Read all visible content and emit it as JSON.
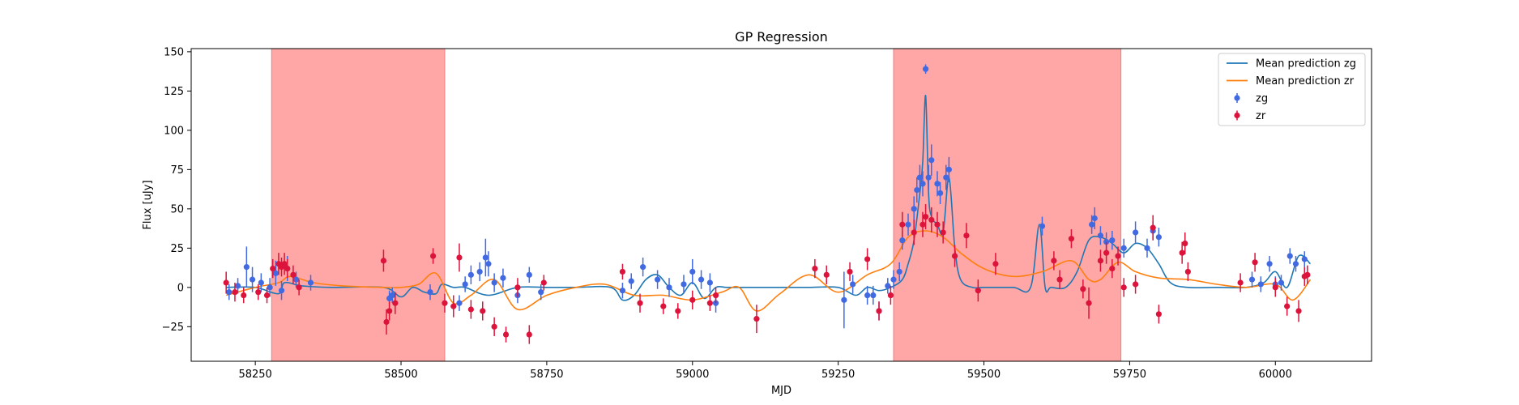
{
  "chart_data": {
    "type": "scatter",
    "title": "GP Regression",
    "xlabel": "MJD",
    "ylabel": "Flux [uJy]",
    "xlim": [
      58140,
      60165
    ],
    "ylim": [
      -47,
      152
    ],
    "xticks": [
      58250,
      58500,
      58750,
      59000,
      59250,
      59500,
      59750,
      60000
    ],
    "yticks": [
      -25,
      0,
      25,
      50,
      75,
      100,
      125,
      150
    ],
    "legend_position": "top-right",
    "grid": false,
    "shaded_regions": [
      {
        "x0": 58278,
        "x1": 58575,
        "color": "#ffa6a6"
      },
      {
        "x0": 59345,
        "x1": 59735,
        "color": "#ffa6a6"
      }
    ],
    "series": [
      {
        "name": "Mean prediction zg",
        "kind": "line",
        "color": "#1f77b4",
        "x": [
          58200,
          58250,
          58290,
          58300,
          58330,
          58380,
          58470,
          58500,
          58520,
          58540,
          58560,
          58570,
          58590,
          58610,
          58650,
          58700,
          58750,
          58800,
          58860,
          58880,
          58900,
          58920,
          58940,
          58960,
          58980,
          59000,
          59020,
          59040,
          59060,
          59100,
          59150,
          59200,
          59250,
          59280,
          59300,
          59320,
          59340,
          59360,
          59370,
          59380,
          59390,
          59395,
          59400,
          59405,
          59410,
          59420,
          59430,
          59440,
          59450,
          59460,
          59480,
          59500,
          59550,
          59580,
          59595,
          59605,
          59615,
          59640,
          59660,
          59680,
          59700,
          59720,
          59740,
          59760,
          59780,
          59800,
          59820,
          59850,
          59900,
          59950,
          59980,
          60000,
          60020,
          60040,
          60060
        ],
        "y": [
          0,
          0,
          -4,
          3,
          1,
          0,
          0,
          -6,
          0,
          -3,
          -4,
          2,
          0,
          0,
          -5,
          0,
          0,
          0,
          0,
          -8,
          -5,
          5,
          8,
          0,
          -5,
          3,
          -7,
          0,
          0,
          0,
          0,
          0,
          0,
          -5,
          0,
          -2,
          0,
          5,
          15,
          30,
          60,
          80,
          122,
          60,
          45,
          40,
          35,
          70,
          25,
          5,
          0,
          0,
          0,
          0,
          40,
          0,
          0,
          0,
          10,
          30,
          32,
          28,
          22,
          28,
          25,
          15,
          3,
          0,
          0,
          0,
          3,
          10,
          0,
          20,
          15
        ]
      },
      {
        "name": "Mean prediction zr",
        "kind": "line",
        "color": "#ff7f0e",
        "x": [
          58200,
          58250,
          58290,
          58310,
          58350,
          58400,
          58470,
          58500,
          58530,
          58560,
          58590,
          58620,
          58660,
          58700,
          58750,
          58800,
          58850,
          58900,
          58950,
          59000,
          59050,
          59080,
          59110,
          59150,
          59200,
          59250,
          59300,
          59340,
          59370,
          59400,
          59430,
          59460,
          59500,
          59550,
          59600,
          59650,
          59680,
          59700,
          59730,
          59760,
          59800,
          59850,
          59900,
          59950,
          60000,
          60030,
          60060
        ],
        "y": [
          -5,
          0,
          3,
          7,
          3,
          1,
          0,
          0,
          2,
          9,
          -10,
          -5,
          5,
          -14,
          -5,
          0,
          2,
          -5,
          -5,
          -8,
          -3,
          0,
          -15,
          -4,
          8,
          -3,
          8,
          15,
          32,
          36,
          32,
          22,
          12,
          7,
          10,
          17,
          5,
          5,
          16,
          10,
          6,
          5,
          2,
          0,
          2,
          -8,
          5
        ]
      },
      {
        "name": "zg",
        "kind": "errorbar",
        "color": "#4169e1",
        "x": [
          58205,
          58220,
          58235,
          58245,
          58260,
          58275,
          58285,
          58295,
          58305,
          58320,
          58345,
          58480,
          58485,
          58550,
          58600,
          58610,
          58620,
          58635,
          58645,
          58650,
          58660,
          58675,
          58700,
          58720,
          58740,
          58880,
          58895,
          58915,
          58940,
          58960,
          58985,
          59000,
          59015,
          59030,
          59040,
          59260,
          59275,
          59300,
          59310,
          59320,
          59335,
          59345,
          59355,
          59360,
          59370,
          59380,
          59385,
          59390,
          59395,
          59400,
          59405,
          59410,
          59420,
          59425,
          59435,
          59440,
          59600,
          59685,
          59690,
          59700,
          59710,
          59720,
          59740,
          59760,
          59780,
          59790,
          59800,
          59960,
          59975,
          59990,
          60000,
          60010,
          60025,
          60035,
          60050
        ],
        "y": [
          -3,
          1,
          13,
          5,
          3,
          0,
          9,
          -2,
          12,
          5,
          3,
          -7,
          -5,
          -3,
          -10,
          2,
          8,
          10,
          19,
          15,
          3,
          6,
          -5,
          8,
          -3,
          -2,
          4,
          13,
          5,
          0,
          2,
          10,
          5,
          3,
          -10,
          -8,
          2,
          -5,
          -5,
          -15,
          1,
          5,
          10,
          30,
          40,
          50,
          62,
          70,
          66,
          139,
          70,
          81,
          66,
          60,
          70,
          75,
          39,
          40,
          44,
          33,
          29,
          30,
          25,
          35,
          25,
          36,
          32,
          5,
          2,
          15,
          2,
          3,
          20,
          15,
          18
        ],
        "err": [
          5,
          5,
          13,
          8,
          6,
          6,
          8,
          6,
          8,
          5,
          5,
          5,
          5,
          5,
          5,
          5,
          6,
          6,
          12,
          8,
          6,
          6,
          5,
          5,
          5,
          5,
          5,
          6,
          6,
          6,
          6,
          8,
          6,
          6,
          6,
          18,
          6,
          6,
          6,
          6,
          5,
          6,
          6,
          6,
          7,
          8,
          8,
          8,
          8,
          3,
          8,
          10,
          8,
          7,
          8,
          8,
          6,
          6,
          7,
          6,
          6,
          6,
          6,
          7,
          6,
          6,
          6,
          5,
          5,
          5,
          5,
          5,
          5,
          5,
          5
        ]
      },
      {
        "name": "zr",
        "kind": "errorbar",
        "color": "#dc143c",
        "x": [
          58200,
          58215,
          58230,
          58255,
          58270,
          58280,
          58290,
          58295,
          58300,
          58305,
          58315,
          58325,
          58470,
          58475,
          58480,
          58490,
          58555,
          58575,
          58590,
          58600,
          58620,
          58640,
          58660,
          58680,
          58700,
          58720,
          58745,
          58880,
          58910,
          58950,
          58975,
          59000,
          59030,
          59040,
          59110,
          59210,
          59230,
          59270,
          59300,
          59320,
          59340,
          59360,
          59380,
          59395,
          59400,
          59410,
          59420,
          59430,
          59450,
          59470,
          59490,
          59520,
          59620,
          59630,
          59650,
          59670,
          59680,
          59700,
          59710,
          59720,
          59730,
          59740,
          59760,
          59790,
          59800,
          59840,
          59845,
          59850,
          59940,
          59965,
          60000,
          60020,
          60040,
          60050,
          60055
        ],
        "y": [
          3,
          -3,
          -5,
          -3,
          -5,
          12,
          15,
          13,
          15,
          12,
          8,
          0,
          17,
          -22,
          -15,
          -10,
          20,
          -10,
          -12,
          19,
          -14,
          -15,
          -25,
          -30,
          0,
          -30,
          3,
          10,
          -10,
          -12,
          -15,
          -8,
          -10,
          -5,
          -20,
          12,
          8,
          10,
          18,
          -15,
          -5,
          40,
          35,
          40,
          45,
          43,
          40,
          35,
          20,
          33,
          -2,
          15,
          17,
          5,
          31,
          -1,
          -10,
          17,
          22,
          12,
          20,
          0,
          2,
          38,
          -17,
          22,
          28,
          10,
          3,
          16,
          0,
          -12,
          -15,
          7,
          8
        ],
        "err": [
          7,
          6,
          5,
          5,
          5,
          6,
          7,
          6,
          7,
          6,
          6,
          5,
          7,
          8,
          6,
          7,
          5,
          6,
          7,
          9,
          6,
          6,
          6,
          5,
          6,
          6,
          5,
          5,
          6,
          5,
          5,
          6,
          5,
          5,
          9,
          6,
          6,
          6,
          7,
          6,
          6,
          8,
          8,
          8,
          8,
          8,
          8,
          7,
          7,
          8,
          7,
          7,
          6,
          6,
          6,
          6,
          10,
          7,
          7,
          6,
          6,
          6,
          6,
          8,
          6,
          7,
          7,
          6,
          6,
          6,
          6,
          6,
          7,
          6,
          6
        ]
      }
    ]
  }
}
